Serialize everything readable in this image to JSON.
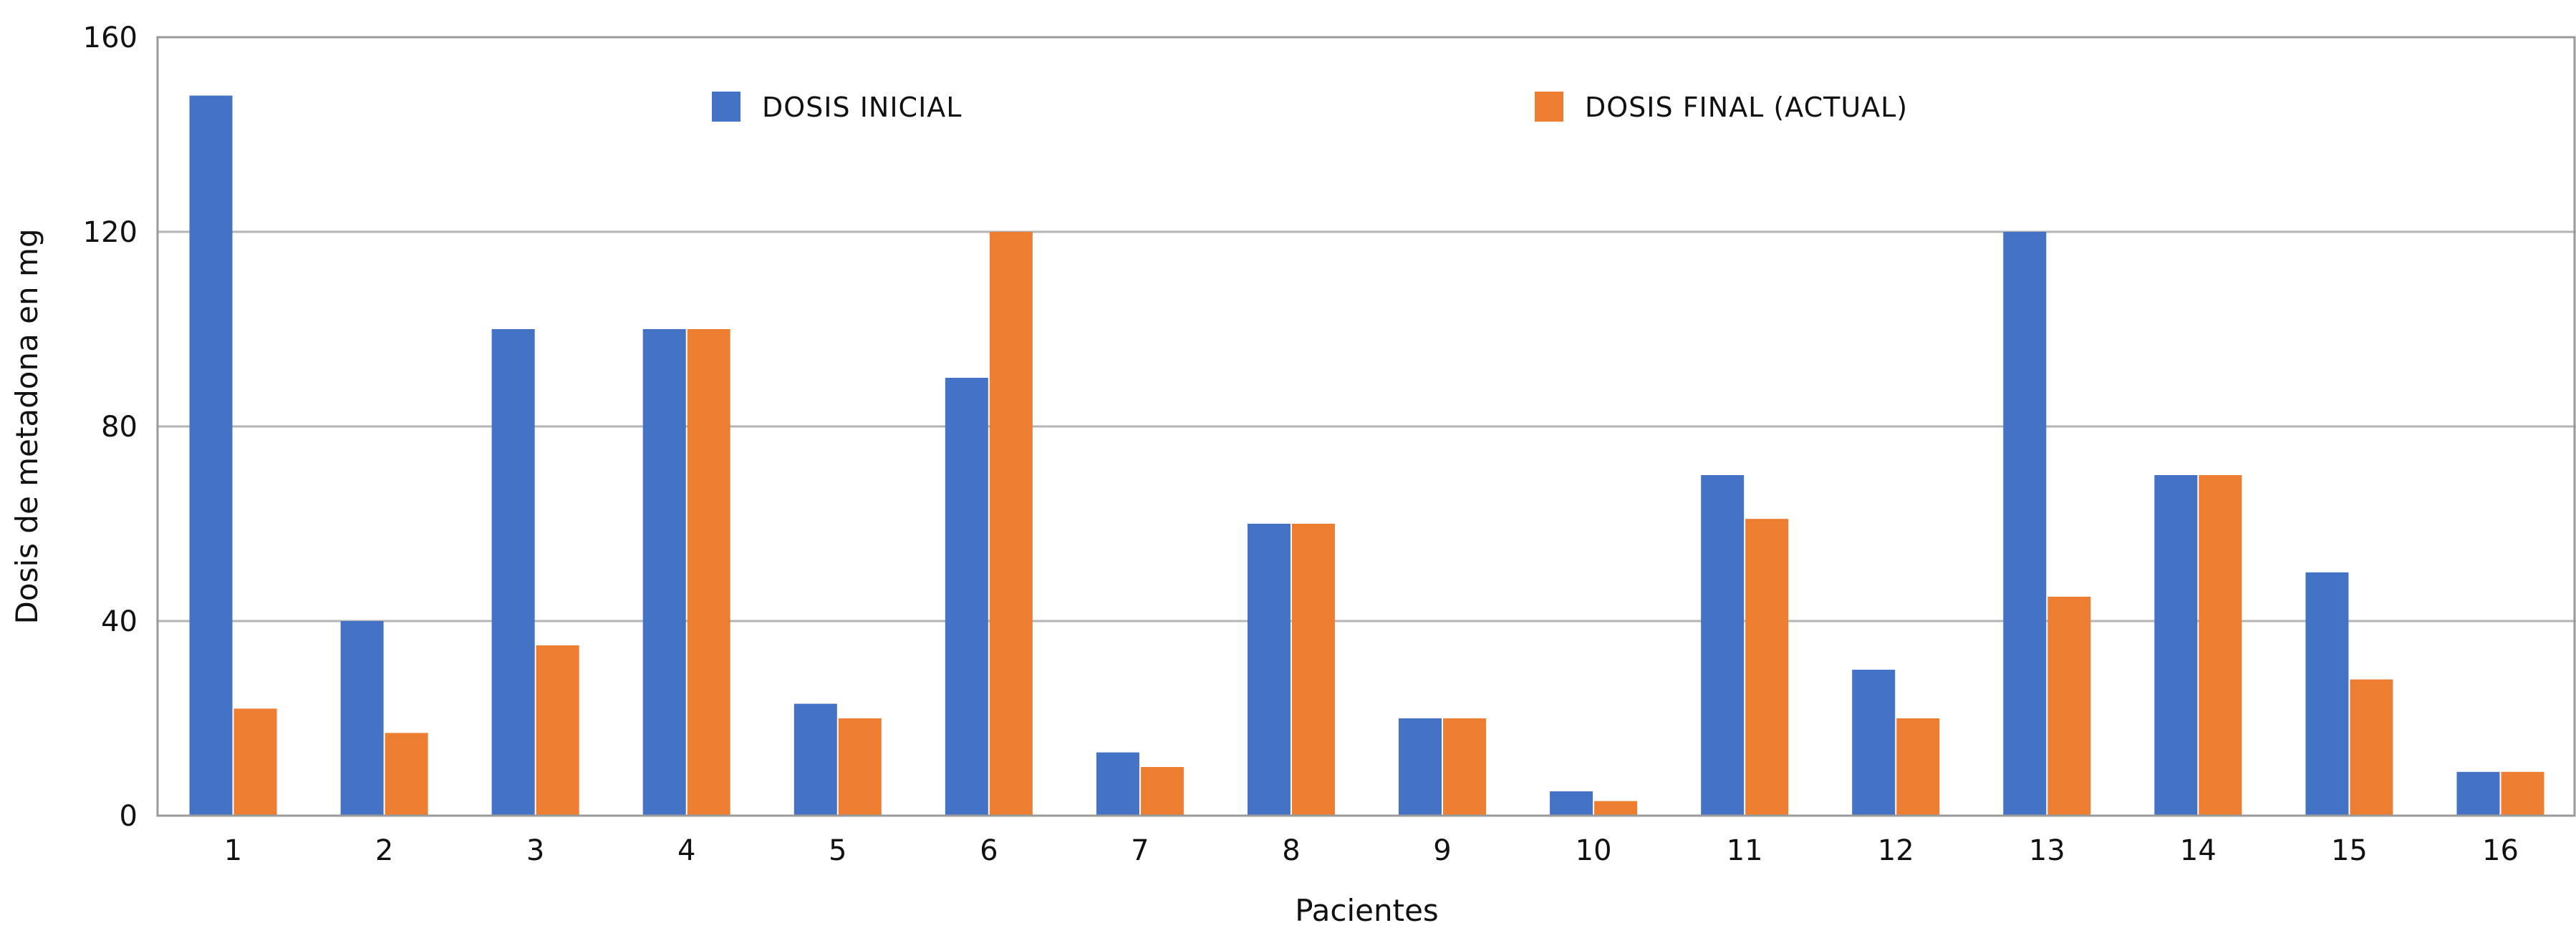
{
  "chart_data": {
    "type": "bar",
    "title": "",
    "xlabel": "Pacientes",
    "ylabel": "Dosis de metadona en mg",
    "ylim": [
      0,
      160
    ],
    "yticks": [
      0,
      40,
      80,
      120,
      160
    ],
    "grid": true,
    "legend_position": "top",
    "categories": [
      "1",
      "2",
      "3",
      "4",
      "5",
      "6",
      "7",
      "8",
      "9",
      "10",
      "11",
      "12",
      "13",
      "14",
      "15",
      "16"
    ],
    "series": [
      {
        "name": "DOSIS INICIAL",
        "color": "#4472C4",
        "values": [
          148,
          40,
          100,
          100,
          23,
          90,
          13,
          60,
          20,
          5,
          70,
          30,
          120,
          70,
          50,
          9
        ]
      },
      {
        "name": "DOSIS FINAL (ACTUAL)",
        "color": "#ED7D31",
        "values": [
          22,
          17,
          35,
          100,
          20,
          120,
          10,
          60,
          20,
          3,
          61,
          20,
          45,
          70,
          28,
          9
        ]
      }
    ]
  }
}
